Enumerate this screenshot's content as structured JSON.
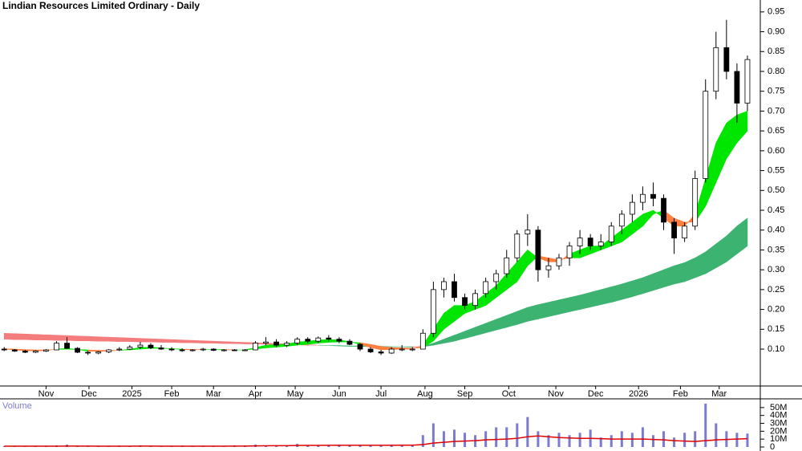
{
  "chart_data": {
    "type": "candlestick",
    "title": "Lindian Resources Limited Ordinary - Daily",
    "x": [
      0,
      1,
      2,
      3,
      4,
      5,
      6,
      7,
      8,
      9,
      10,
      11,
      12,
      13,
      14,
      15,
      16,
      17,
      18,
      19,
      20,
      21,
      22,
      23,
      24,
      25,
      26,
      27,
      28,
      29,
      30,
      31,
      32,
      33,
      34,
      35,
      36,
      37,
      38,
      39,
      40,
      41,
      42,
      43,
      44,
      45,
      46,
      47,
      48,
      49,
      50,
      51,
      52,
      53,
      54,
      55,
      56,
      57,
      58,
      59,
      60,
      61,
      62,
      63,
      64,
      65,
      66,
      67,
      68,
      69,
      70,
      71
    ],
    "xlim": [
      -0.4,
      72
    ],
    "xticks": [
      {
        "value": 4,
        "label": "Nov"
      },
      {
        "value": 8.1,
        "label": "Dec"
      },
      {
        "value": 12.2,
        "label": "2025"
      },
      {
        "value": 16,
        "label": "Feb"
      },
      {
        "value": 20,
        "label": "Mar"
      },
      {
        "value": 24,
        "label": "Apr"
      },
      {
        "value": 27.8,
        "label": "May"
      },
      {
        "value": 32,
        "label": "Jun"
      },
      {
        "value": 36,
        "label": "Jul"
      },
      {
        "value": 40.2,
        "label": "Aug"
      },
      {
        "value": 44,
        "label": "Sep"
      },
      {
        "value": 48.2,
        "label": "Oct"
      },
      {
        "value": 52.7,
        "label": "Nov"
      },
      {
        "value": 56.5,
        "label": "Dec"
      },
      {
        "value": 60.6,
        "label": "2026"
      },
      {
        "value": 64.6,
        "label": "Feb"
      },
      {
        "value": 68.3,
        "label": "Mar"
      }
    ],
    "ylim": [
      0.007,
      0.98
    ],
    "yticks": [
      {
        "value": 0.1,
        "label": "0.10"
      },
      0.15,
      {
        "value": 0.2,
        "label": "0.20"
      },
      0.25,
      {
        "value": 0.3,
        "label": "0.30"
      },
      0.35,
      {
        "value": 0.4,
        "label": "0.40"
      },
      0.45,
      {
        "value": 0.5,
        "label": "0.50"
      },
      0.55,
      {
        "value": 0.6,
        "label": "0.60"
      },
      0.65,
      {
        "value": 0.7,
        "label": "0.70"
      },
      0.75,
      {
        "value": 0.8,
        "label": "0.80"
      },
      0.85,
      {
        "value": 0.9,
        "label": "0.90"
      },
      0.95
    ],
    "up_color": "#ffffff",
    "down_color": "#000000",
    "ohlc": [
      [
        0.1,
        0.105,
        0.095,
        0.098
      ],
      [
        0.098,
        0.1,
        0.093,
        0.095
      ],
      [
        0.095,
        0.098,
        0.09,
        0.092
      ],
      [
        0.092,
        0.097,
        0.09,
        0.095
      ],
      [
        0.095,
        0.1,
        0.093,
        0.098
      ],
      [
        0.098,
        0.12,
        0.097,
        0.115
      ],
      [
        0.115,
        0.13,
        0.1,
        0.102
      ],
      [
        0.102,
        0.105,
        0.09,
        0.092
      ],
      [
        0.092,
        0.095,
        0.085,
        0.09
      ],
      [
        0.09,
        0.095,
        0.087,
        0.093
      ],
      [
        0.093,
        0.1,
        0.09,
        0.098
      ],
      [
        0.098,
        0.105,
        0.095,
        0.1
      ],
      [
        0.1,
        0.11,
        0.098,
        0.105
      ],
      [
        0.105,
        0.118,
        0.1,
        0.11
      ],
      [
        0.11,
        0.115,
        0.1,
        0.103
      ],
      [
        0.103,
        0.11,
        0.098,
        0.1
      ],
      [
        0.1,
        0.105,
        0.095,
        0.098
      ],
      [
        0.098,
        0.102,
        0.093,
        0.096
      ],
      [
        0.096,
        0.1,
        0.094,
        0.098
      ],
      [
        0.098,
        0.103,
        0.095,
        0.1
      ],
      [
        0.1,
        0.102,
        0.095,
        0.097
      ],
      [
        0.097,
        0.1,
        0.094,
        0.098
      ],
      [
        0.098,
        0.1,
        0.095,
        0.097
      ],
      [
        0.097,
        0.1,
        0.095,
        0.098
      ],
      [
        0.098,
        0.12,
        0.097,
        0.115
      ],
      [
        0.115,
        0.13,
        0.11,
        0.118
      ],
      [
        0.118,
        0.125,
        0.105,
        0.11
      ],
      [
        0.11,
        0.12,
        0.105,
        0.115
      ],
      [
        0.115,
        0.13,
        0.11,
        0.125
      ],
      [
        0.125,
        0.13,
        0.115,
        0.12
      ],
      [
        0.12,
        0.132,
        0.115,
        0.128
      ],
      [
        0.128,
        0.135,
        0.12,
        0.125
      ],
      [
        0.125,
        0.13,
        0.115,
        0.12
      ],
      [
        0.12,
        0.125,
        0.11,
        0.112
      ],
      [
        0.112,
        0.115,
        0.095,
        0.1
      ],
      [
        0.1,
        0.105,
        0.09,
        0.093
      ],
      [
        0.093,
        0.098,
        0.085,
        0.09
      ],
      [
        0.09,
        0.105,
        0.088,
        0.1
      ],
      [
        0.1,
        0.11,
        0.095,
        0.1
      ],
      [
        0.1,
        0.105,
        0.095,
        0.1
      ],
      [
        0.1,
        0.15,
        0.1,
        0.14
      ],
      [
        0.14,
        0.27,
        0.13,
        0.25
      ],
      [
        0.25,
        0.28,
        0.23,
        0.27
      ],
      [
        0.27,
        0.29,
        0.22,
        0.23
      ],
      [
        0.23,
        0.24,
        0.2,
        0.21
      ],
      [
        0.21,
        0.25,
        0.2,
        0.24
      ],
      [
        0.24,
        0.28,
        0.23,
        0.27
      ],
      [
        0.27,
        0.3,
        0.25,
        0.29
      ],
      [
        0.29,
        0.35,
        0.28,
        0.33
      ],
      [
        0.33,
        0.4,
        0.32,
        0.39
      ],
      [
        0.39,
        0.44,
        0.36,
        0.4
      ],
      [
        0.4,
        0.41,
        0.27,
        0.3
      ],
      [
        0.3,
        0.33,
        0.28,
        0.31
      ],
      [
        0.31,
        0.34,
        0.3,
        0.33
      ],
      [
        0.33,
        0.37,
        0.31,
        0.36
      ],
      [
        0.36,
        0.4,
        0.34,
        0.38
      ],
      [
        0.38,
        0.39,
        0.35,
        0.36
      ],
      [
        0.36,
        0.39,
        0.35,
        0.37
      ],
      [
        0.37,
        0.42,
        0.36,
        0.41
      ],
      [
        0.41,
        0.45,
        0.39,
        0.44
      ],
      [
        0.44,
        0.49,
        0.42,
        0.47
      ],
      [
        0.47,
        0.51,
        0.45,
        0.49
      ],
      [
        0.49,
        0.52,
        0.46,
        0.48
      ],
      [
        0.48,
        0.49,
        0.4,
        0.42
      ],
      [
        0.42,
        0.43,
        0.34,
        0.38
      ],
      [
        0.38,
        0.42,
        0.37,
        0.41
      ],
      [
        0.41,
        0.55,
        0.4,
        0.53
      ],
      [
        0.53,
        0.78,
        0.52,
        0.75
      ],
      [
        0.75,
        0.9,
        0.73,
        0.86
      ],
      [
        0.86,
        0.93,
        0.78,
        0.8
      ],
      [
        0.8,
        0.82,
        0.67,
        0.72
      ],
      [
        0.72,
        0.84,
        0.7,
        0.83
      ]
    ],
    "bands": [
      {
        "up_color": "#3cb371",
        "down_color": "#f47c7c",
        "fast": [
          0.125,
          0.124,
          0.124,
          0.123,
          0.123,
          0.122,
          0.122,
          0.121,
          0.121,
          0.12,
          0.12,
          0.119,
          0.119,
          0.118,
          0.118,
          0.117,
          0.117,
          0.116,
          0.116,
          0.115,
          0.115,
          0.114,
          0.114,
          0.113,
          0.113,
          0.112,
          0.112,
          0.111,
          0.111,
          0.11,
          0.11,
          0.109,
          0.109,
          0.108,
          0.108,
          0.107,
          0.107,
          0.106,
          0.106,
          0.105,
          0.107,
          0.115,
          0.125,
          0.135,
          0.145,
          0.155,
          0.165,
          0.175,
          0.185,
          0.195,
          0.205,
          0.212,
          0.218,
          0.224,
          0.23,
          0.236,
          0.243,
          0.25,
          0.257,
          0.264,
          0.272,
          0.28,
          0.29,
          0.3,
          0.31,
          0.318,
          0.33,
          0.345,
          0.365,
          0.385,
          0.41,
          0.43
        ],
        "slow": [
          0.14,
          0.139,
          0.138,
          0.137,
          0.136,
          0.135,
          0.134,
          0.133,
          0.132,
          0.131,
          0.13,
          0.129,
          0.128,
          0.127,
          0.126,
          0.125,
          0.124,
          0.123,
          0.122,
          0.121,
          0.12,
          0.119,
          0.118,
          0.117,
          0.116,
          0.115,
          0.114,
          0.113,
          0.112,
          0.111,
          0.11,
          0.109,
          0.108,
          0.107,
          0.107,
          0.106,
          0.106,
          0.106,
          0.106,
          0.106,
          0.106,
          0.11,
          0.115,
          0.12,
          0.127,
          0.134,
          0.141,
          0.148,
          0.155,
          0.162,
          0.17,
          0.176,
          0.182,
          0.188,
          0.194,
          0.2,
          0.206,
          0.212,
          0.218,
          0.225,
          0.232,
          0.24,
          0.248,
          0.256,
          0.264,
          0.27,
          0.28,
          0.29,
          0.305,
          0.32,
          0.34,
          0.36
        ]
      },
      {
        "up_color": "#00e600",
        "down_color": "#ff7f3f",
        "fast": [
          0.1,
          0.098,
          0.096,
          0.095,
          0.096,
          0.1,
          0.102,
          0.099,
          0.095,
          0.094,
          0.095,
          0.097,
          0.1,
          0.104,
          0.105,
          0.103,
          0.101,
          0.099,
          0.098,
          0.099,
          0.099,
          0.098,
          0.098,
          0.098,
          0.104,
          0.11,
          0.111,
          0.113,
          0.118,
          0.12,
          0.123,
          0.124,
          0.123,
          0.119,
          0.112,
          0.104,
          0.098,
          0.099,
          0.1,
          0.1,
          0.11,
          0.15,
          0.19,
          0.21,
          0.21,
          0.22,
          0.24,
          0.26,
          0.29,
          0.32,
          0.35,
          0.33,
          0.32,
          0.32,
          0.34,
          0.35,
          0.36,
          0.36,
          0.38,
          0.4,
          0.42,
          0.44,
          0.45,
          0.43,
          0.41,
          0.41,
          0.44,
          0.53,
          0.62,
          0.67,
          0.69,
          0.7
        ],
        "slow": [
          0.101,
          0.1,
          0.099,
          0.098,
          0.098,
          0.099,
          0.1,
          0.099,
          0.098,
          0.097,
          0.097,
          0.097,
          0.098,
          0.1,
          0.102,
          0.102,
          0.101,
          0.1,
          0.099,
          0.099,
          0.099,
          0.099,
          0.098,
          0.098,
          0.1,
          0.103,
          0.105,
          0.107,
          0.11,
          0.112,
          0.115,
          0.117,
          0.118,
          0.118,
          0.116,
          0.112,
          0.107,
          0.104,
          0.103,
          0.102,
          0.104,
          0.12,
          0.15,
          0.17,
          0.19,
          0.2,
          0.21,
          0.23,
          0.25,
          0.27,
          0.31,
          0.335,
          0.33,
          0.325,
          0.33,
          0.33,
          0.34,
          0.35,
          0.36,
          0.37,
          0.39,
          0.41,
          0.44,
          0.45,
          0.43,
          0.42,
          0.42,
          0.46,
          0.52,
          0.58,
          0.62,
          0.65
        ]
      }
    ],
    "volume": {
      "label": "Volume",
      "color": "#7b7bd1",
      "ma_color": "#e00000",
      "ylim": [
        0,
        58
      ],
      "yticks": [
        0,
        {
          "value": 10,
          "label": "10M"
        },
        {
          "value": 20,
          "label": "20M"
        },
        {
          "value": 30,
          "label": "30M"
        },
        {
          "value": 40,
          "label": "40M"
        },
        {
          "value": 50,
          "label": "50M"
        }
      ],
      "values": [
        1,
        1,
        1,
        1,
        1,
        2,
        3,
        1,
        1,
        1,
        1,
        1,
        1,
        2,
        1,
        1,
        1,
        1,
        1,
        1,
        1,
        1,
        2,
        2,
        3,
        2,
        2,
        2,
        4,
        2,
        2,
        2,
        3,
        2,
        2,
        2,
        2,
        3,
        3,
        2,
        15,
        30,
        20,
        22,
        18,
        15,
        20,
        25,
        25,
        30,
        38,
        20,
        15,
        18,
        15,
        18,
        22,
        12,
        15,
        20,
        18,
        25,
        15,
        20,
        12,
        18,
        20,
        55,
        30,
        20,
        18,
        17
      ],
      "ma": [
        1,
        1,
        1,
        1,
        1,
        1,
        1.2,
        1.2,
        1.1,
        1,
        1,
        1,
        1,
        1.1,
        1.1,
        1,
        1,
        1,
        1,
        1,
        1,
        1,
        1.1,
        1.2,
        1.4,
        1.5,
        1.6,
        1.7,
        1.9,
        2,
        2,
        2.1,
        2.2,
        2.2,
        2.1,
        2.1,
        2.1,
        2.2,
        2.3,
        2.3,
        3,
        5,
        6,
        7,
        7.5,
        8,
        9,
        9.5,
        10,
        11,
        13,
        14,
        13,
        12,
        11.5,
        11,
        11,
        10.5,
        10,
        10,
        10,
        10,
        9.5,
        9,
        8,
        7.5,
        7,
        8,
        9,
        9.5,
        10,
        10.5
      ]
    }
  }
}
